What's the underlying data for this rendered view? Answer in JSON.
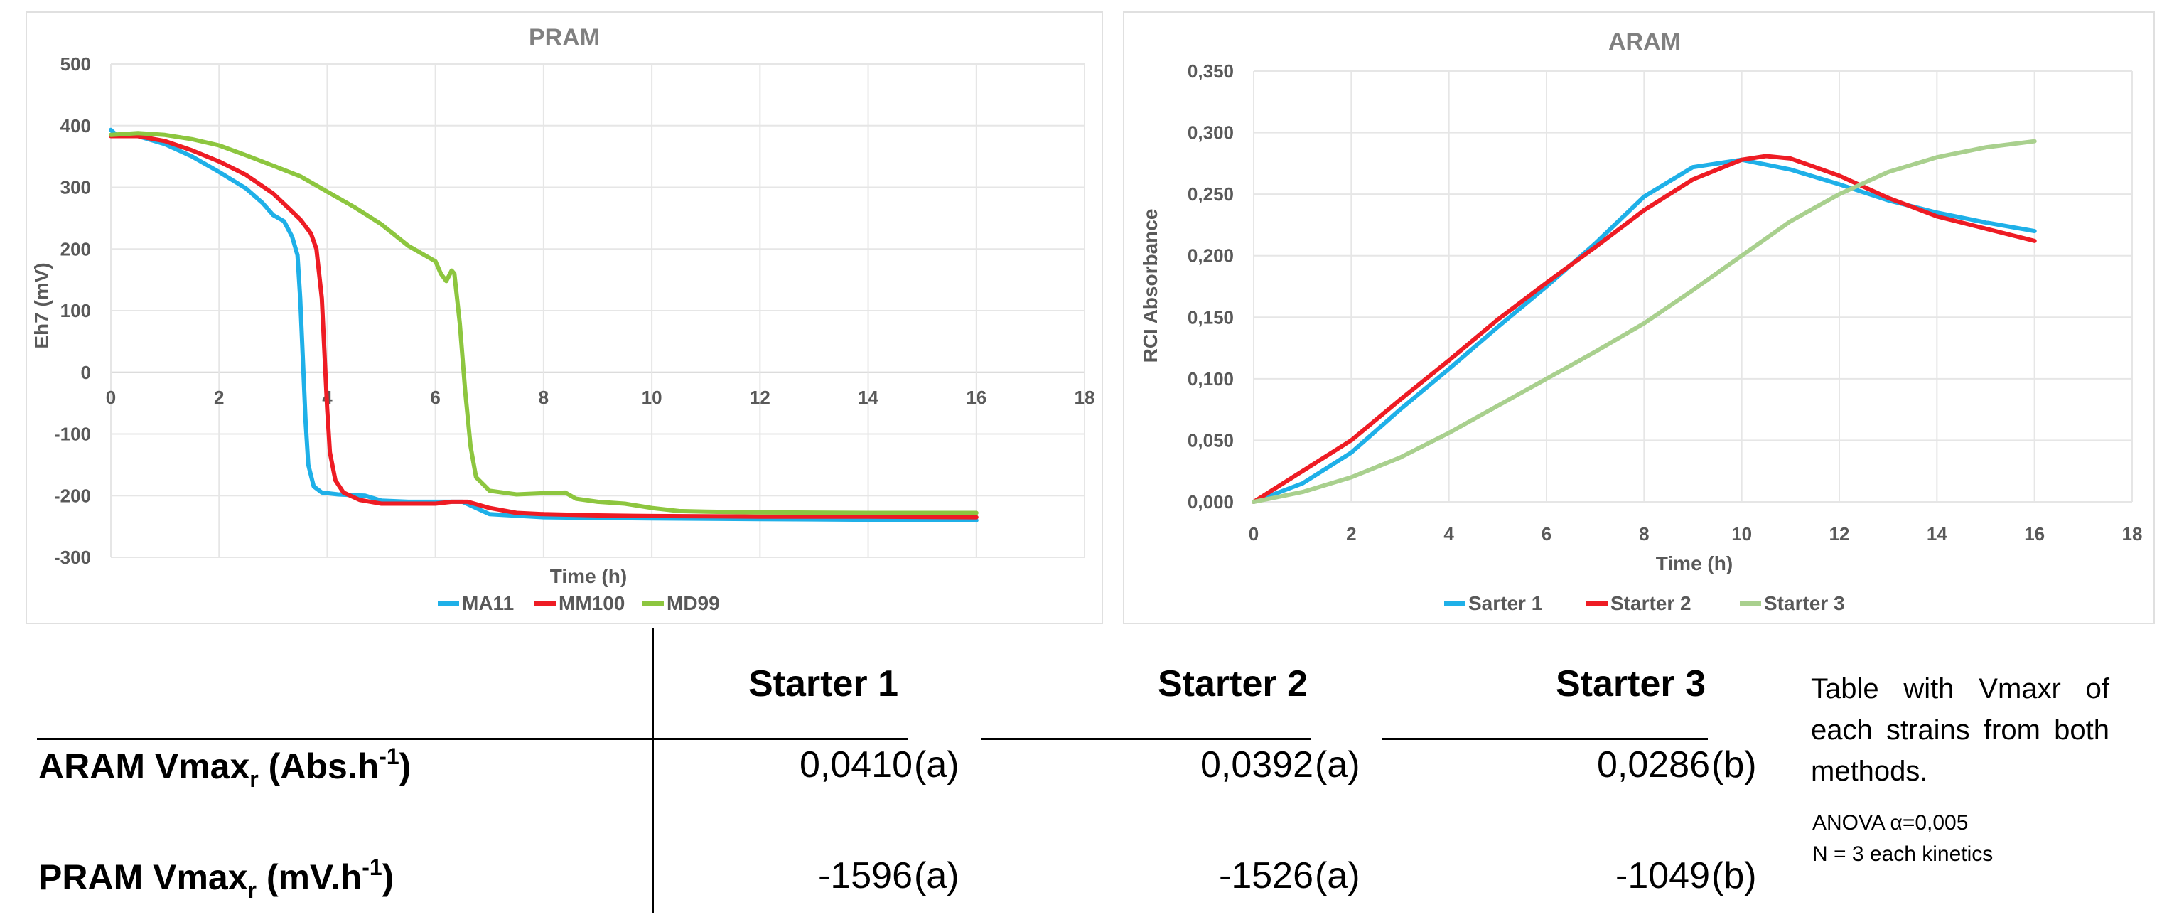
{
  "chart_data": [
    {
      "type": "line",
      "title": "PRAM",
      "xlabel": "Time (h)",
      "ylabel": "Eh7 (mV)",
      "xlim": [
        0,
        18
      ],
      "ylim": [
        -300,
        500
      ],
      "xticks": [
        0,
        2,
        4,
        6,
        8,
        10,
        12,
        14,
        16,
        18
      ],
      "yticks": [
        -300,
        -200,
        -100,
        0,
        100,
        200,
        300,
        400,
        500
      ],
      "grid": true,
      "legend": "bottom",
      "series": [
        {
          "name": "MA11",
          "color": "#1fb0e8",
          "points": [
            [
              0,
              393
            ],
            [
              0.1,
              385
            ],
            [
              0.5,
              383
            ],
            [
              1,
              370
            ],
            [
              1.5,
              350
            ],
            [
              2,
              325
            ],
            [
              2.5,
              298
            ],
            [
              2.8,
              275
            ],
            [
              3,
              255
            ],
            [
              3.2,
              245
            ],
            [
              3.35,
              220
            ],
            [
              3.45,
              190
            ],
            [
              3.5,
              120
            ],
            [
              3.55,
              20
            ],
            [
              3.6,
              -80
            ],
            [
              3.65,
              -150
            ],
            [
              3.75,
              -185
            ],
            [
              3.9,
              -195
            ],
            [
              4.2,
              -198
            ],
            [
              4.7,
              -200
            ],
            [
              5,
              -208
            ],
            [
              5.5,
              -210
            ],
            [
              6,
              -210
            ],
            [
              6.5,
              -210
            ],
            [
              7,
              -230
            ],
            [
              8,
              -235
            ],
            [
              9,
              -236
            ],
            [
              10,
              -237
            ],
            [
              12,
              -238
            ],
            [
              14,
              -239
            ],
            [
              16,
              -240
            ]
          ]
        },
        {
          "name": "MM100",
          "color": "#ee1c24",
          "points": [
            [
              0,
              383
            ],
            [
              0.5,
              383
            ],
            [
              1,
              375
            ],
            [
              1.5,
              360
            ],
            [
              2,
              342
            ],
            [
              2.5,
              320
            ],
            [
              3,
              290
            ],
            [
              3.3,
              265
            ],
            [
              3.5,
              248
            ],
            [
              3.7,
              225
            ],
            [
              3.8,
              200
            ],
            [
              3.9,
              120
            ],
            [
              3.95,
              30
            ],
            [
              4.0,
              -60
            ],
            [
              4.05,
              -130
            ],
            [
              4.15,
              -175
            ],
            [
              4.3,
              -195
            ],
            [
              4.6,
              -207
            ],
            [
              5,
              -213
            ],
            [
              5.5,
              -213
            ],
            [
              6,
              -213
            ],
            [
              6.3,
              -210
            ],
            [
              6.6,
              -210
            ],
            [
              7,
              -220
            ],
            [
              7.5,
              -228
            ],
            [
              8,
              -230
            ],
            [
              9,
              -232
            ],
            [
              10,
              -233
            ],
            [
              12,
              -234
            ],
            [
              14,
              -234
            ],
            [
              16,
              -235
            ]
          ]
        },
        {
          "name": "MD99",
          "color": "#8dc63f",
          "points": [
            [
              0,
              385
            ],
            [
              0.5,
              388
            ],
            [
              1,
              385
            ],
            [
              1.5,
              378
            ],
            [
              2,
              368
            ],
            [
              2.5,
              352
            ],
            [
              3,
              335
            ],
            [
              3.5,
              318
            ],
            [
              4,
              293
            ],
            [
              4.5,
              268
            ],
            [
              5,
              240
            ],
            [
              5.5,
              205
            ],
            [
              6,
              180
            ],
            [
              6.1,
              160
            ],
            [
              6.2,
              148
            ],
            [
              6.3,
              165
            ],
            [
              6.35,
              160
            ],
            [
              6.45,
              80
            ],
            [
              6.55,
              -30
            ],
            [
              6.65,
              -120
            ],
            [
              6.75,
              -170
            ],
            [
              7,
              -192
            ],
            [
              7.5,
              -198
            ],
            [
              8,
              -196
            ],
            [
              8.4,
              -195
            ],
            [
              8.6,
              -205
            ],
            [
              9,
              -210
            ],
            [
              9.5,
              -213
            ],
            [
              10,
              -220
            ],
            [
              10.5,
              -225
            ],
            [
              11,
              -226
            ],
            [
              12,
              -227
            ],
            [
              14,
              -228
            ],
            [
              16,
              -228
            ]
          ]
        }
      ]
    },
    {
      "type": "line",
      "title": "ARAM",
      "xlabel": "Time (h)",
      "ylabel": "RCI Absorbance",
      "xlim": [
        0,
        18
      ],
      "ylim": [
        0,
        0.35
      ],
      "xticks": [
        0,
        2,
        4,
        6,
        8,
        10,
        12,
        14,
        16,
        18
      ],
      "yticks": [
        "0,000",
        "0,050",
        "0,100",
        "0,150",
        "0,200",
        "0,250",
        "0,300",
        "0,350"
      ],
      "grid": true,
      "legend": "bottom",
      "series": [
        {
          "name": "Sarter 1",
          "color": "#1fb0e8",
          "points": [
            [
              0,
              0
            ],
            [
              1,
              0.015
            ],
            [
              2,
              0.04
            ],
            [
              3,
              0.075
            ],
            [
              4,
              0.108
            ],
            [
              5,
              0.142
            ],
            [
              6,
              0.175
            ],
            [
              7,
              0.21
            ],
            [
              8,
              0.248
            ],
            [
              9,
              0.272
            ],
            [
              10,
              0.278
            ],
            [
              11,
              0.27
            ],
            [
              12,
              0.258
            ],
            [
              13,
              0.245
            ],
            [
              14,
              0.235
            ],
            [
              15,
              0.227
            ],
            [
              16,
              0.22
            ]
          ]
        },
        {
          "name": "Starter 2",
          "color": "#ee1c24",
          "points": [
            [
              0,
              0
            ],
            [
              1,
              0.025
            ],
            [
              2,
              0.05
            ],
            [
              3,
              0.083
            ],
            [
              4,
              0.115
            ],
            [
              5,
              0.148
            ],
            [
              6,
              0.178
            ],
            [
              7,
              0.207
            ],
            [
              8,
              0.237
            ],
            [
              9,
              0.262
            ],
            [
              10,
              0.278
            ],
            [
              10.5,
              0.281
            ],
            [
              11,
              0.279
            ],
            [
              12,
              0.265
            ],
            [
              13,
              0.247
            ],
            [
              14,
              0.232
            ],
            [
              15,
              0.222
            ],
            [
              16,
              0.212
            ]
          ]
        },
        {
          "name": "Starter 3",
          "color": "#a9d08e",
          "points": [
            [
              0,
              0
            ],
            [
              1,
              0.008
            ],
            [
              2,
              0.02
            ],
            [
              3,
              0.036
            ],
            [
              4,
              0.056
            ],
            [
              5,
              0.078
            ],
            [
              6,
              0.1
            ],
            [
              7,
              0.122
            ],
            [
              8,
              0.145
            ],
            [
              9,
              0.172
            ],
            [
              10,
              0.2
            ],
            [
              11,
              0.228
            ],
            [
              12,
              0.25
            ],
            [
              13,
              0.268
            ],
            [
              14,
              0.28
            ],
            [
              15,
              0.288
            ],
            [
              16,
              0.293
            ]
          ]
        }
      ]
    }
  ],
  "table": {
    "headers": [
      "Starter 1",
      "Starter 2",
      "Starter 3"
    ],
    "rows": [
      {
        "label_main": "ARAM Vmax",
        "label_sub": "r",
        "label_unit_pre": " (Abs.h",
        "label_sup": "-1",
        "label_unit_post": ")",
        "values": [
          "0,0410",
          "0,0392",
          "0,0286"
        ],
        "groups": [
          "(a)",
          "(a)",
          "(b)"
        ]
      },
      {
        "label_main": "PRAM Vmax",
        "label_sub": "r",
        "label_unit_pre": " (mV.h",
        "label_sup": "-1",
        "label_unit_post": ")",
        "values": [
          "-1596",
          "-1526",
          "-1049"
        ],
        "groups": [
          "(a)",
          "(a)",
          "(b)"
        ]
      }
    ]
  },
  "note": "Table with Vmaxr of each strains from both methods.",
  "stats": {
    "line1": "ANOVA α=0,005",
    "line2": "N = 3 each kinetics"
  }
}
